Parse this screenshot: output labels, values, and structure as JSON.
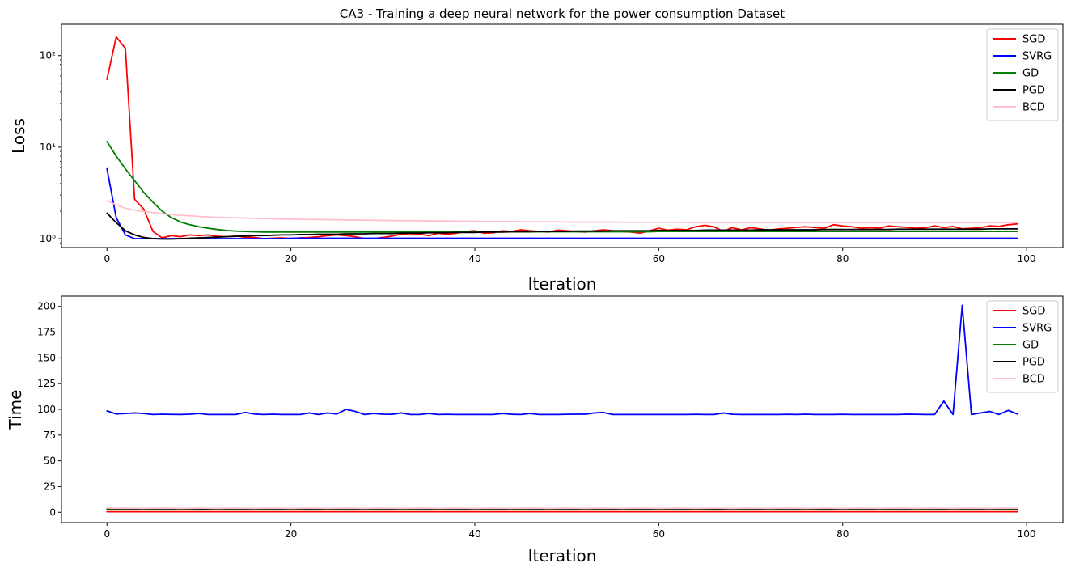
{
  "chart_data": [
    {
      "type": "line",
      "title": "CA3 - Training a deep neural network for the power consumption Dataset",
      "xlabel": "Iteration",
      "ylabel": "Loss",
      "yscale": "log",
      "xlim": [
        -4.95,
        103.95
      ],
      "ylim": [
        0.8,
        220
      ],
      "xticks": [
        0,
        20,
        40,
        60,
        80,
        100
      ],
      "xtick_labels": [
        "0",
        "20",
        "40",
        "60",
        "80",
        "100"
      ],
      "yticks": [
        1,
        10,
        100
      ],
      "ytick_labels": [
        "10⁰",
        "10¹",
        "10²"
      ],
      "grid": false,
      "legend_position": "top-right",
      "series": [
        {
          "name": "SGD",
          "color": "#ff0000",
          "values": [
            55,
            160,
            120,
            2.7,
            2.1,
            1.2,
            1.02,
            1.08,
            1.05,
            1.1,
            1.08,
            1.1,
            1.06,
            1.05,
            1.07,
            1.04,
            1.03,
            1.0,
            1.01,
            1.02,
            1.0,
            1.02,
            1.03,
            1.05,
            1.08,
            1.1,
            1.08,
            1.05,
            1.0,
            1.0,
            1.03,
            1.07,
            1.12,
            1.1,
            1.12,
            1.08,
            1.15,
            1.12,
            1.15,
            1.2,
            1.22,
            1.15,
            1.16,
            1.22,
            1.2,
            1.25,
            1.22,
            1.2,
            1.18,
            1.24,
            1.22,
            1.2,
            1.18,
            1.22,
            1.25,
            1.22,
            1.2,
            1.18,
            1.15,
            1.22,
            1.3,
            1.24,
            1.27,
            1.25,
            1.35,
            1.4,
            1.35,
            1.2,
            1.32,
            1.25,
            1.32,
            1.28,
            1.24,
            1.28,
            1.3,
            1.33,
            1.35,
            1.32,
            1.3,
            1.42,
            1.38,
            1.35,
            1.3,
            1.32,
            1.3,
            1.38,
            1.35,
            1.33,
            1.3,
            1.32,
            1.38,
            1.32,
            1.36,
            1.28,
            1.3,
            1.32,
            1.38,
            1.36,
            1.42,
            1.45
          ]
        },
        {
          "name": "SVRG",
          "color": "#0000ff",
          "values": [
            5.8,
            1.7,
            1.1,
            1.0,
            1.0,
            1.0,
            1.0,
            1.0,
            1.0,
            1.0,
            1.0,
            1.0,
            1.0,
            1.0,
            1.0,
            1.0,
            1.0,
            1.0,
            1.0,
            1.0,
            1.01,
            1.01,
            1.01,
            1.01,
            1.01,
            1.01,
            1.01,
            1.01,
            1.01,
            1.01,
            1.01,
            1.01,
            1.01,
            1.01,
            1.01,
            1.01,
            1.01,
            1.01,
            1.01,
            1.01,
            1.01,
            1.01,
            1.01,
            1.01,
            1.01,
            1.01,
            1.01,
            1.01,
            1.01,
            1.01,
            1.01,
            1.01,
            1.01,
            1.01,
            1.01,
            1.01,
            1.01,
            1.01,
            1.01,
            1.01,
            1.01,
            1.01,
            1.01,
            1.01,
            1.01,
            1.01,
            1.01,
            1.01,
            1.01,
            1.01,
            1.01,
            1.01,
            1.01,
            1.01,
            1.01,
            1.01,
            1.01,
            1.01,
            1.01,
            1.01,
            1.01,
            1.01,
            1.01,
            1.01,
            1.01,
            1.01,
            1.01,
            1.01,
            1.01,
            1.01,
            1.01,
            1.01,
            1.01,
            1.01,
            1.01,
            1.01,
            1.01,
            1.01,
            1.01,
            1.01
          ]
        },
        {
          "name": "GD",
          "color": "#008000",
          "values": [
            11.5,
            8.0,
            5.8,
            4.3,
            3.2,
            2.5,
            2.0,
            1.7,
            1.52,
            1.42,
            1.35,
            1.3,
            1.26,
            1.23,
            1.21,
            1.2,
            1.19,
            1.18,
            1.18,
            1.18,
            1.18,
            1.18,
            1.18,
            1.18,
            1.18,
            1.18,
            1.18,
            1.18,
            1.18,
            1.18,
            1.18,
            1.18,
            1.18,
            1.18,
            1.18,
            1.18,
            1.18,
            1.19,
            1.19,
            1.19,
            1.19,
            1.19,
            1.19,
            1.19,
            1.19,
            1.19,
            1.19,
            1.19,
            1.19,
            1.19,
            1.19,
            1.19,
            1.19,
            1.19,
            1.19,
            1.19,
            1.19,
            1.19,
            1.19,
            1.19,
            1.2,
            1.2,
            1.2,
            1.2,
            1.2,
            1.2,
            1.2,
            1.2,
            1.2,
            1.2,
            1.2,
            1.2,
            1.2,
            1.2,
            1.2,
            1.2,
            1.2,
            1.2,
            1.2,
            1.2,
            1.2,
            1.2,
            1.2,
            1.2,
            1.2,
            1.2,
            1.2,
            1.2,
            1.2,
            1.2,
            1.2,
            1.2,
            1.2,
            1.2,
            1.2,
            1.2,
            1.2,
            1.2,
            1.2,
            1.2
          ]
        },
        {
          "name": "PGD",
          "color": "#000000",
          "values": [
            1.9,
            1.5,
            1.22,
            1.1,
            1.03,
            1.0,
            0.99,
            0.99,
            1.0,
            1.01,
            1.02,
            1.03,
            1.04,
            1.05,
            1.06,
            1.07,
            1.08,
            1.08,
            1.09,
            1.1,
            1.1,
            1.11,
            1.11,
            1.12,
            1.12,
            1.12,
            1.13,
            1.13,
            1.13,
            1.14,
            1.14,
            1.14,
            1.15,
            1.15,
            1.15,
            1.16,
            1.16,
            1.16,
            1.17,
            1.17,
            1.17,
            1.18,
            1.18,
            1.18,
            1.19,
            1.19,
            1.19,
            1.2,
            1.2,
            1.2,
            1.2,
            1.21,
            1.21,
            1.21,
            1.21,
            1.22,
            1.22,
            1.22,
            1.22,
            1.22,
            1.23,
            1.23,
            1.23,
            1.23,
            1.23,
            1.24,
            1.24,
            1.24,
            1.24,
            1.24,
            1.24,
            1.25,
            1.25,
            1.25,
            1.25,
            1.25,
            1.25,
            1.25,
            1.26,
            1.26,
            1.26,
            1.26,
            1.26,
            1.26,
            1.26,
            1.26,
            1.27,
            1.27,
            1.27,
            1.27,
            1.27,
            1.27,
            1.27,
            1.27,
            1.27,
            1.27,
            1.28,
            1.28,
            1.28,
            1.28
          ]
        },
        {
          "name": "BCD",
          "color": "#ffc0cb",
          "values": [
            2.6,
            2.35,
            2.15,
            2.05,
            1.98,
            1.93,
            1.88,
            1.83,
            1.8,
            1.78,
            1.75,
            1.73,
            1.71,
            1.7,
            1.69,
            1.68,
            1.67,
            1.66,
            1.65,
            1.64,
            1.63,
            1.63,
            1.62,
            1.62,
            1.61,
            1.61,
            1.6,
            1.6,
            1.59,
            1.59,
            1.58,
            1.58,
            1.57,
            1.57,
            1.57,
            1.56,
            1.56,
            1.56,
            1.55,
            1.55,
            1.55,
            1.54,
            1.54,
            1.54,
            1.54,
            1.53,
            1.53,
            1.53,
            1.53,
            1.53,
            1.52,
            1.52,
            1.52,
            1.52,
            1.52,
            1.52,
            1.51,
            1.51,
            1.51,
            1.51,
            1.51,
            1.51,
            1.51,
            1.5,
            1.5,
            1.5,
            1.5,
            1.5,
            1.5,
            1.5,
            1.5,
            1.5,
            1.5,
            1.5,
            1.5,
            1.5,
            1.5,
            1.5,
            1.5,
            1.5,
            1.5,
            1.5,
            1.5,
            1.5,
            1.5,
            1.5,
            1.5,
            1.5,
            1.5,
            1.5,
            1.5,
            1.5,
            1.5,
            1.5,
            1.5,
            1.5,
            1.5,
            1.5,
            1.5,
            1.5
          ]
        }
      ]
    },
    {
      "type": "line",
      "title": "",
      "xlabel": "Iteration",
      "ylabel": "Time",
      "yscale": "linear",
      "xlim": [
        -4.95,
        103.95
      ],
      "ylim": [
        -10,
        210
      ],
      "xticks": [
        0,
        20,
        40,
        60,
        80,
        100
      ],
      "xtick_labels": [
        "0",
        "20",
        "40",
        "60",
        "80",
        "100"
      ],
      "yticks": [
        0,
        25,
        50,
        75,
        100,
        125,
        150,
        175,
        200
      ],
      "ytick_labels": [
        "0",
        "25",
        "50",
        "75",
        "100",
        "125",
        "150",
        "175",
        "200"
      ],
      "grid": false,
      "legend_position": "top-right",
      "series": [
        {
          "name": "SGD",
          "color": "#ff0000",
          "values": [
            0.5,
            0.5,
            0.5,
            0.5,
            0.5,
            0.5,
            0.5,
            0.5,
            0.5,
            0.5,
            0.5,
            0.5,
            0.5,
            0.5,
            0.5,
            0.5,
            0.5,
            0.5,
            0.5,
            0.5,
            0.5,
            0.5,
            0.5,
            0.5,
            0.5,
            0.5,
            0.5,
            0.5,
            0.5,
            0.5,
            0.5,
            0.5,
            0.5,
            0.5,
            0.5,
            0.5,
            0.5,
            0.5,
            0.5,
            0.5,
            0.5,
            0.5,
            0.5,
            0.5,
            0.5,
            0.5,
            0.5,
            0.5,
            0.5,
            0.5,
            0.5,
            0.5,
            0.5,
            0.5,
            0.5,
            0.5,
            0.5,
            0.5,
            0.5,
            0.5,
            0.5,
            0.5,
            0.5,
            0.5,
            0.5,
            0.5,
            0.5,
            0.5,
            0.5,
            0.5,
            0.5,
            0.5,
            0.5,
            0.5,
            0.5,
            0.5,
            0.5,
            0.5,
            0.5,
            0.5,
            0.5,
            0.5,
            0.5,
            0.5,
            0.5,
            0.5,
            0.5,
            0.5,
            0.5,
            0.5,
            0.5,
            0.5,
            0.5,
            0.5,
            0.5,
            0.5,
            0.5,
            0.5,
            0.5,
            0.5
          ]
        },
        {
          "name": "SVRG",
          "color": "#0000ff",
          "values": [
            98.5,
            95.5,
            96,
            96.5,
            96,
            95,
            95.3,
            95.1,
            95,
            95.3,
            96,
            95,
            95,
            95,
            95,
            97,
            95.5,
            95,
            95.3,
            95,
            95,
            95,
            96.5,
            95,
            96.5,
            95.5,
            100,
            98,
            95,
            96,
            95.3,
            95.2,
            96.5,
            95,
            95,
            96,
            95,
            95.2,
            95,
            95,
            95,
            95,
            95,
            96,
            95.2,
            95,
            96,
            95,
            95,
            95,
            95.2,
            95.3,
            95.3,
            96.5,
            97,
            95,
            95,
            95,
            95,
            95,
            95,
            95,
            95,
            95,
            95.2,
            95,
            95,
            96.5,
            95.2,
            95,
            95,
            95,
            95,
            95,
            95.2,
            95,
            95.3,
            95,
            95,
            95,
            95.2,
            95,
            95,
            95,
            95,
            95,
            95,
            95.3,
            95.2,
            95,
            95,
            108,
            95,
            201,
            95,
            96.5,
            98,
            95,
            99,
            95.5
          ]
        },
        {
          "name": "GD",
          "color": "#008000",
          "values": [
            3,
            3,
            3,
            3,
            3,
            3,
            3,
            3,
            3,
            3,
            3,
            3,
            3,
            3,
            3,
            3,
            3,
            3,
            3,
            3,
            3,
            3,
            3,
            3,
            3,
            3,
            3,
            3,
            3,
            3,
            3,
            3,
            3,
            3,
            3,
            3,
            3,
            3,
            3,
            3,
            3,
            3,
            3,
            3,
            3,
            3,
            3,
            3,
            3,
            3,
            3,
            3,
            3,
            3,
            3,
            3,
            3,
            3,
            3,
            3,
            3,
            3,
            3,
            3,
            3,
            3,
            3,
            3,
            3,
            3,
            3,
            3,
            3,
            3,
            3,
            3,
            3,
            3,
            3,
            3,
            3,
            3,
            3,
            3,
            3,
            3,
            3,
            3,
            3,
            3,
            3,
            3,
            3,
            3,
            3,
            3,
            3,
            3,
            3,
            3
          ]
        },
        {
          "name": "PGD",
          "color": "#000000",
          "values": [
            3.8,
            3.6,
            3.7,
            3.5,
            3.6,
            3.7,
            3.6,
            3.5,
            3.6,
            3.7,
            3.6,
            3.5,
            3.6,
            3.7,
            3.6,
            3.5,
            3.6,
            3.7,
            3.6,
            3.5,
            3.6,
            3.7,
            3.6,
            3.5,
            3.6,
            3.7,
            3.6,
            3.5,
            3.6,
            3.7,
            3.6,
            3.5,
            3.6,
            3.7,
            3.6,
            3.5,
            3.6,
            3.7,
            3.6,
            3.5,
            3.6,
            3.7,
            3.6,
            3.5,
            3.6,
            3.7,
            3.6,
            3.5,
            3.6,
            3.7,
            3.6,
            3.5,
            3.6,
            3.7,
            3.6,
            3.5,
            3.6,
            3.7,
            3.6,
            3.5,
            3.6,
            3.7,
            3.6,
            3.5,
            3.6,
            3.7,
            3.6,
            3.5,
            3.6,
            3.7,
            3.6,
            3.5,
            3.6,
            3.7,
            3.6,
            3.5,
            3.6,
            3.7,
            3.6,
            3.5,
            3.6,
            3.7,
            3.6,
            3.5,
            3.6,
            3.7,
            3.6,
            3.5,
            3.6,
            3.7,
            3.6,
            3.5,
            3.6,
            3.7,
            3.6,
            3.5,
            3.6,
            3.7,
            3.6,
            3.5
          ]
        },
        {
          "name": "BCD",
          "color": "#ffc0cb",
          "values": [
            4.2,
            4.0,
            4.1,
            4.0,
            3.9,
            4.0,
            4.1,
            4.0,
            3.9,
            4.0,
            4.1,
            4.0,
            3.9,
            4.0,
            4.1,
            4.0,
            3.9,
            4.0,
            4.1,
            4.0,
            3.9,
            4.0,
            4.1,
            4.0,
            3.9,
            4.0,
            4.1,
            4.0,
            3.9,
            4.0,
            4.1,
            4.0,
            3.9,
            4.0,
            4.1,
            4.0,
            3.9,
            4.0,
            4.1,
            4.0,
            3.9,
            4.0,
            4.1,
            4.0,
            3.9,
            4.0,
            4.1,
            4.0,
            3.9,
            4.0,
            4.1,
            4.0,
            3.9,
            4.0,
            4.1,
            4.0,
            3.9,
            4.0,
            4.1,
            4.0,
            3.9,
            4.0,
            4.1,
            4.0,
            3.9,
            4.0,
            4.1,
            4.0,
            3.9,
            4.0,
            4.1,
            4.0,
            3.9,
            4.0,
            4.1,
            4.0,
            3.9,
            4.0,
            4.1,
            4.0,
            3.9,
            4.0,
            4.1,
            4.0,
            3.9,
            4.0,
            4.1,
            4.0,
            3.9,
            4.0,
            4.1,
            4.0,
            3.9,
            4.0,
            4.1,
            4.0,
            3.9,
            4.0,
            4.1,
            4.0
          ]
        }
      ]
    }
  ]
}
